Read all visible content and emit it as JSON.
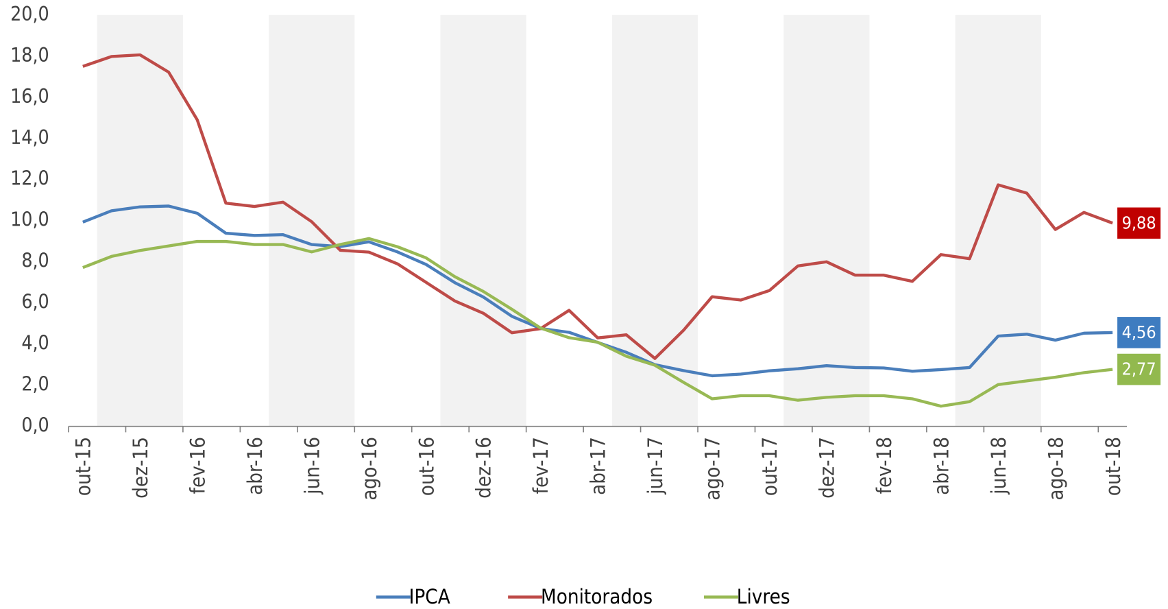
{
  "chart_data": {
    "type": "line",
    "categories": [
      "out-15",
      null,
      "dez-15",
      null,
      "fev-16",
      null,
      "abr-16",
      null,
      "jun-16",
      null,
      "ago-16",
      null,
      "out-16",
      null,
      "dez-16",
      null,
      "fev-17",
      null,
      "abr-17",
      null,
      "jun-17",
      null,
      "ago-17",
      null,
      "out-17",
      null,
      "dez-17",
      null,
      "fev-18",
      null,
      "abr-18",
      null,
      "jun-18",
      null,
      "ago-18",
      null,
      "out-18"
    ],
    "series": [
      {
        "name": "IPCA",
        "color": "#4a7ebb",
        "values": [
          9.93,
          10.48,
          10.67,
          10.71,
          10.36,
          9.39,
          9.28,
          9.32,
          8.84,
          8.74,
          8.97,
          8.48,
          7.87,
          6.99,
          6.29,
          5.35,
          4.76,
          4.57,
          4.08,
          3.6,
          3.0,
          2.71,
          2.46,
          2.54,
          2.7,
          2.8,
          2.95,
          2.86,
          2.84,
          2.68,
          2.76,
          2.86,
          4.39,
          4.48,
          4.19,
          4.53,
          4.56
        ],
        "value_labels": [
          null,
          null,
          null,
          null,
          null,
          null,
          null,
          null,
          null,
          null,
          null,
          null,
          null,
          null,
          null,
          null,
          null,
          null,
          null,
          null,
          null,
          null,
          null,
          null,
          null,
          null,
          null,
          null,
          null,
          null,
          null,
          null,
          null,
          null,
          null,
          null,
          "4,56"
        ]
      },
      {
        "name": "Monitorados",
        "color": "#be4b48",
        "values": [
          17.5,
          17.98,
          18.06,
          17.22,
          14.9,
          10.85,
          10.69,
          10.9,
          9.95,
          8.56,
          8.47,
          7.9,
          7.0,
          6.1,
          5.5,
          4.55,
          4.75,
          5.64,
          4.3,
          4.45,
          3.3,
          4.67,
          6.3,
          6.14,
          6.6,
          7.8,
          8.0,
          7.35,
          7.35,
          7.05,
          8.35,
          8.15,
          11.74,
          11.34,
          9.57,
          10.4,
          9.88
        ],
        "value_labels": [
          null,
          null,
          null,
          null,
          null,
          null,
          null,
          null,
          null,
          null,
          null,
          null,
          null,
          null,
          null,
          null,
          null,
          null,
          null,
          null,
          null,
          null,
          null,
          null,
          null,
          null,
          null,
          null,
          null,
          null,
          null,
          null,
          null,
          null,
          null,
          null,
          "9,88"
        ]
      },
      {
        "name": "Livres",
        "color": "#98b954",
        "values": [
          7.72,
          8.26,
          8.55,
          8.77,
          8.99,
          8.99,
          8.84,
          8.84,
          8.48,
          8.84,
          9.13,
          8.73,
          8.19,
          7.28,
          6.56,
          5.69,
          4.78,
          4.31,
          4.09,
          3.41,
          2.97,
          2.14,
          1.34,
          1.49,
          1.49,
          1.27,
          1.41,
          1.49,
          1.49,
          1.34,
          0.98,
          1.2,
          2.03,
          2.21,
          2.39,
          2.61,
          2.77
        ],
        "value_labels": [
          null,
          null,
          null,
          null,
          null,
          null,
          null,
          null,
          null,
          null,
          null,
          null,
          null,
          null,
          null,
          null,
          null,
          null,
          null,
          null,
          null,
          null,
          null,
          null,
          null,
          null,
          null,
          null,
          null,
          null,
          null,
          null,
          null,
          null,
          null,
          null,
          "2,77"
        ]
      }
    ],
    "label_colors": [
      "#3e7cc0",
      "#c00000",
      "#92b94e"
    ],
    "ylim": [
      0,
      20
    ],
    "yticks": [
      {
        "value": 0,
        "label": "0,0"
      },
      {
        "value": 2,
        "label": "2,0"
      },
      {
        "value": 4,
        "label": "4,0"
      },
      {
        "value": 6,
        "label": "6,0"
      },
      {
        "value": 8,
        "label": "8,0"
      },
      {
        "value": 10,
        "label": "10,0"
      },
      {
        "value": 12,
        "label": "12,0"
      },
      {
        "value": 14,
        "label": "14,0"
      },
      {
        "value": 16,
        "label": "16,0"
      },
      {
        "value": 18,
        "label": "18,0"
      },
      {
        "value": 20,
        "label": "20,0"
      }
    ],
    "legend": "bottom"
  }
}
